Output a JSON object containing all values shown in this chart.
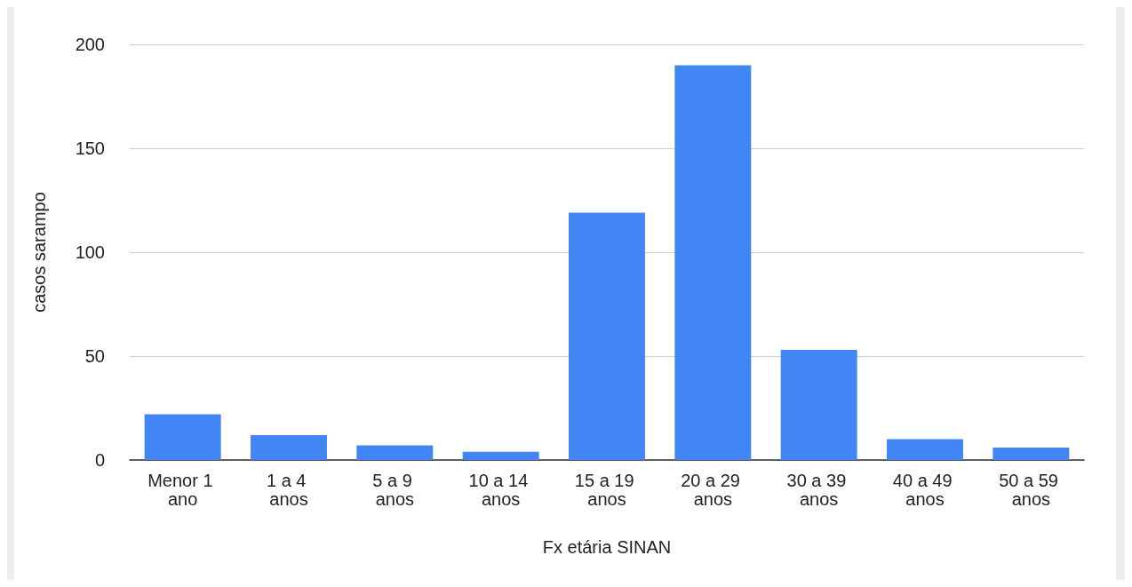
{
  "chart_data": {
    "type": "bar",
    "xlabel": "Fx etária SINAN",
    "ylabel": "casos sarampo",
    "categories": [
      "Menor 1 ano",
      "1 a 4 anos",
      "5 a 9 anos",
      "10 a 14 anos",
      "15 a 19 anos",
      "20 a 29 anos",
      "30 a 39 anos",
      "40 a 49 anos",
      "50 a 59 anos"
    ],
    "values": [
      22,
      12,
      7,
      4,
      119,
      190,
      53,
      10,
      6
    ],
    "color": "#4285f4",
    "ylim": [
      0,
      200
    ],
    "yticks": [
      0,
      50,
      100,
      150,
      200
    ],
    "grid": "y"
  }
}
